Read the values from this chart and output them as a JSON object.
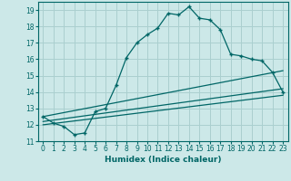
{
  "xlabel": "Humidex (Indice chaleur)",
  "bg_color": "#cce8e8",
  "grid_color": "#aacfcf",
  "line_color": "#006666",
  "xlim": [
    -0.5,
    23.5
  ],
  "ylim": [
    11,
    19.5
  ],
  "yticks": [
    11,
    12,
    13,
    14,
    15,
    16,
    17,
    18,
    19
  ],
  "xticks": [
    0,
    1,
    2,
    3,
    4,
    5,
    6,
    7,
    8,
    9,
    10,
    11,
    12,
    13,
    14,
    15,
    16,
    17,
    18,
    19,
    20,
    21,
    22,
    23
  ],
  "series1_x": [
    0,
    1,
    2,
    3,
    4,
    5,
    6,
    7,
    8,
    9,
    10,
    11,
    12,
    13,
    14,
    15,
    16,
    17,
    18,
    19,
    20,
    21,
    22,
    23
  ],
  "series1_y": [
    12.5,
    12.1,
    11.9,
    11.4,
    11.5,
    12.8,
    13.0,
    14.4,
    16.1,
    17.0,
    17.5,
    17.9,
    18.8,
    18.7,
    19.2,
    18.5,
    18.4,
    17.8,
    16.3,
    16.2,
    16.0,
    15.9,
    15.2,
    14.0
  ],
  "series2_x": [
    0,
    23
  ],
  "series2_y": [
    12.5,
    15.3
  ],
  "series3_x": [
    0,
    23
  ],
  "series3_y": [
    12.2,
    14.2
  ],
  "series4_x": [
    0,
    23
  ],
  "series4_y": [
    12.0,
    13.8
  ]
}
